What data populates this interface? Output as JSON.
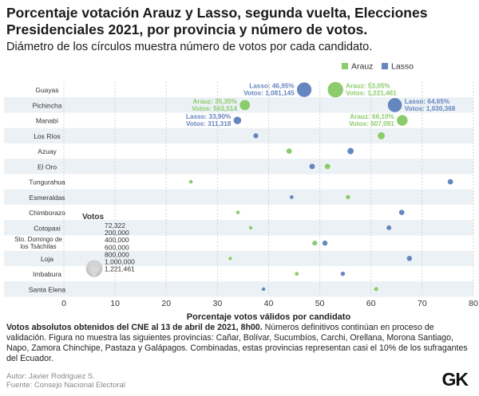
{
  "header": {
    "title": "Porcentaje votación Arauz y Lasso, segunda vuelta, Elecciones Presidenciales 2021, por provincia y número de votos.",
    "subtitle": "Diámetro de los círculos muestra número de votos por cada candidato."
  },
  "colors": {
    "arauz": "#8ccc6c",
    "lasso": "#6586bf",
    "band": "#ecf1f5",
    "size_legend": "#e0e0e0"
  },
  "chart_data": {
    "type": "scatter",
    "xlabel": "Porcentaje votos válidos por candidato",
    "xlim": [
      0,
      80
    ],
    "xticks": [
      "0",
      "10",
      "20",
      "30",
      "40",
      "50",
      "60",
      "70",
      "80"
    ],
    "legend": {
      "placement": "top-right",
      "entries": [
        "Arauz",
        "Lasso"
      ]
    },
    "provinces": [
      "Guayas",
      "Pichincha",
      "Manabí",
      "Los Ríos",
      "Azuay",
      "El Oro",
      "Tungurahua",
      "Esmeraldas",
      "Chimborazo",
      "Cotopaxi",
      "Sto. Domingo de los Tsáchilas",
      "Loja",
      "Imbabura",
      "Santa Elena"
    ],
    "series": [
      {
        "name": "Arauz",
        "x": [
          53.05,
          35.35,
          66.1,
          62,
          44,
          51.5,
          24.8,
          55.5,
          34,
          36.5,
          49,
          32.5,
          45.5,
          61
        ],
        "votes": [
          1221461,
          563514,
          607091,
          290000,
          170000,
          180000,
          50000,
          120000,
          70000,
          80000,
          140000,
          70000,
          90000,
          110000
        ]
      },
      {
        "name": "Lasso",
        "x": [
          46.95,
          64.65,
          33.9,
          37.5,
          56,
          48.5,
          75.5,
          44.5,
          66,
          63.5,
          51,
          67.5,
          54.5,
          39
        ],
        "votes": [
          1081145,
          1030368,
          311318,
          150000,
          220000,
          180000,
          170000,
          90000,
          160000,
          140000,
          150000,
          160000,
          110000,
          80000
        ]
      }
    ],
    "annotations": [
      {
        "series": "Lasso",
        "province": "Guayas",
        "lines": [
          "Lasso: 46,95%",
          "Votos: 1,081,145"
        ],
        "side": "left"
      },
      {
        "series": "Arauz",
        "province": "Guayas",
        "lines": [
          "Arauz: 53,05%",
          "Votos: 1,221,461"
        ],
        "side": "right"
      },
      {
        "series": "Arauz",
        "province": "Pichincha",
        "lines": [
          "Arauz: 35,35%",
          "Votos: 563,514"
        ],
        "side": "left"
      },
      {
        "series": "Lasso",
        "province": "Pichincha",
        "lines": [
          "Lasso: 64,65%",
          "Votos: 1,030,368"
        ],
        "side": "right"
      },
      {
        "series": "Lasso",
        "province": "Manabí",
        "lines": [
          "Lasso: 33,90%",
          "Votos: 311,318"
        ],
        "side": "left"
      },
      {
        "series": "Arauz",
        "province": "Manabí",
        "lines": [
          "Arauz: 66,10%",
          "Votos: 607,091"
        ],
        "side": "left"
      }
    ],
    "size_legend": {
      "title": "Votos",
      "values": [
        72322,
        200000,
        400000,
        600000,
        800000,
        1000000,
        1221461
      ],
      "labels": [
        "72,322",
        "200,000",
        "400,000",
        "600,000",
        "800,000",
        "1,000,000",
        "1,221,461"
      ]
    }
  },
  "footer": {
    "note_bold": "Votos absolutos obtenidos del CNE al 13 de abril de 2021, 8h00.",
    "note_rest": " Números definitivos continúan en proceso de validación. Figura no muestra las siguientes provincias: Cañar, Bolívar, Sucumbíos, Carchi, Orellana, Morona Santiago, Napo, Zamora Chinchipe, Pastaza y Galápagos. Combinadas, estas provincias representan casi el 10% de los sufragantes del Ecuador.",
    "author": "Autor: Javier Rodriguez S.",
    "source": "Fuente: Consejo Nacional Electoral",
    "logo": "GK"
  }
}
